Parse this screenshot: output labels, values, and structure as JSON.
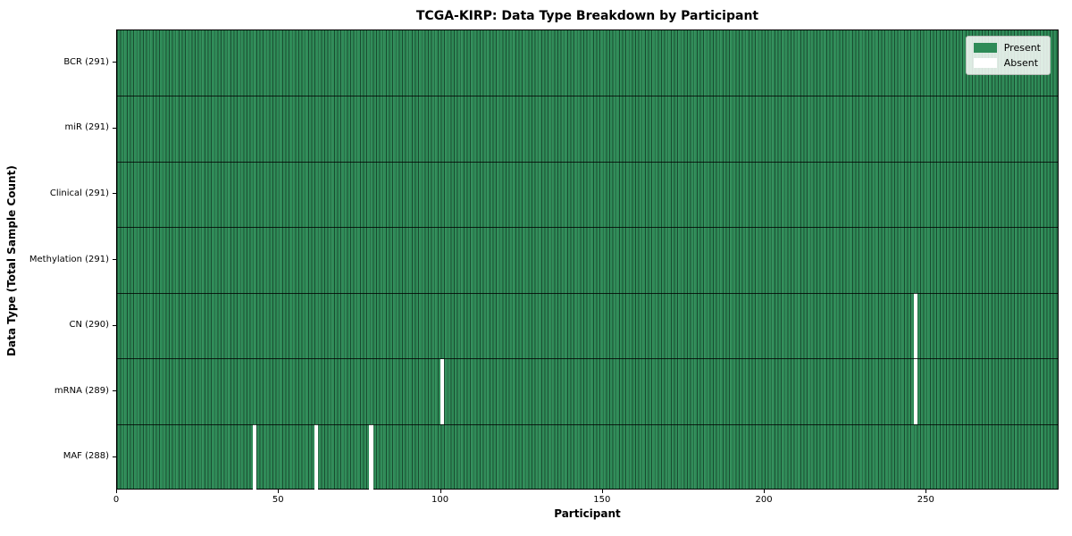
{
  "title": "TCGA-KIRP: Data Type Breakdown by Participant",
  "axes": {
    "xlabel": "Participant",
    "ylabel": "Data Type (Total Sample Count)",
    "x_tick_values": [
      0,
      50,
      100,
      150,
      200,
      250
    ],
    "x_tick_labels": [
      "0",
      "50",
      "100",
      "150",
      "200",
      "250"
    ]
  },
  "legend": {
    "items": [
      {
        "label": "Present",
        "color": "#2e8b57"
      },
      {
        "label": "Absent",
        "color": "#ffffff"
      }
    ]
  },
  "colors": {
    "present": "#2e8b57",
    "absent": "#ffffff",
    "frame": "#000000"
  },
  "chart_data": {
    "type": "heatmap",
    "title": "TCGA-KIRP: Data Type Breakdown by Participant",
    "xlabel": "Participant",
    "ylabel": "Data Type (Total Sample Count)",
    "x_range": [
      0,
      291
    ],
    "total_participants": 291,
    "grid": false,
    "legend_entries": [
      "Present",
      "Absent"
    ],
    "legend_position": "upper right",
    "present_color": "#2e8b57",
    "absent_color": "#ffffff",
    "rows": [
      {
        "label": "BCR (291)",
        "data_type": "BCR",
        "present_count": 291,
        "absent_participants": []
      },
      {
        "label": "miR (291)",
        "data_type": "miR",
        "present_count": 291,
        "absent_participants": []
      },
      {
        "label": "Clinical (291)",
        "data_type": "Clinical",
        "present_count": 291,
        "absent_participants": []
      },
      {
        "label": "Methylation (291)",
        "data_type": "Methylation",
        "present_count": 291,
        "absent_participants": []
      },
      {
        "label": "CN (290)",
        "data_type": "CN",
        "present_count": 290,
        "absent_participants": [
          246
        ]
      },
      {
        "label": "mRNA (289)",
        "data_type": "mRNA",
        "present_count": 289,
        "absent_participants": [
          100,
          246
        ]
      },
      {
        "label": "MAF (288)",
        "data_type": "MAF",
        "present_count": 288,
        "absent_participants": [
          42,
          61,
          78
        ]
      }
    ]
  }
}
